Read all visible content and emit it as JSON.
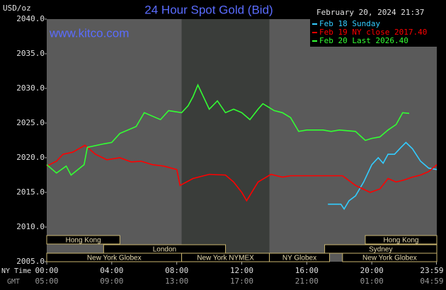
{
  "chart_data": {
    "type": "line",
    "title": "24 Hour Spot Gold (Bid)",
    "y_label": "USD/oz",
    "watermark": "www.kitco.com",
    "timestamp": "February 20, 2024 21:37",
    "x_row_label": "NY Time",
    "x2_row_label": "GMT",
    "xlim": [
      0,
      24
    ],
    "xticks": [
      {
        "value": 0,
        "label": "00:00"
      },
      {
        "value": 4,
        "label": "04:00"
      },
      {
        "value": 8,
        "label": "08:00"
      },
      {
        "value": 12,
        "label": "12:00"
      },
      {
        "value": 16,
        "label": "16:00"
      },
      {
        "value": 20,
        "label": "20:00"
      },
      {
        "value": 23.98,
        "label": "23:59"
      }
    ],
    "x2tick_labels": [
      "05:00",
      "09:00",
      "13:00",
      "17:00",
      "21:00",
      "01:00",
      "04:59"
    ],
    "ylim": [
      2005,
      2040
    ],
    "yticks": [
      {
        "value": 2005,
        "label": "2005.0"
      },
      {
        "value": 2010,
        "label": "2010.0"
      },
      {
        "value": 2015,
        "label": "2015.0"
      },
      {
        "value": 2020,
        "label": "2020.0"
      },
      {
        "value": 2025,
        "label": "2025.0"
      },
      {
        "value": 2030,
        "label": "2030.0"
      },
      {
        "value": 2035,
        "label": "2035.0"
      },
      {
        "value": 2040,
        "label": "2040.0"
      }
    ],
    "shaded_range": [
      8.3,
      13.7
    ],
    "series": [
      {
        "name": "Feb 18 Sunday",
        "color": "#33ccff",
        "x": [
          17.3,
          18.1,
          18.3,
          18.6,
          19,
          19.5,
          20,
          20.4,
          20.7,
          21,
          21.4,
          21.8,
          22.1,
          22.5,
          23,
          23.5,
          24
        ],
        "values": [
          2013.3,
          2013.3,
          2012.6,
          2013.8,
          2014.5,
          2016.5,
          2019,
          2020,
          2019.2,
          2020.5,
          2020.5,
          2021.5,
          2022.2,
          2021.3,
          2019.5,
          2018.5,
          2018.3
        ]
      },
      {
        "name": "Feb 19 NY close 2017.40",
        "color": "#ff0000",
        "x": [
          0,
          0.6,
          1,
          1.6,
          2.35,
          3,
          3.7,
          4.5,
          5.2,
          5.8,
          6.5,
          7.2,
          8,
          8.2,
          9,
          10,
          11,
          11.5,
          12,
          12.3,
          13,
          13.8,
          14.5,
          15,
          16,
          17,
          18.2,
          19,
          19.9,
          20.5,
          21,
          21.5,
          22,
          22.5,
          23,
          23.5,
          24
        ],
        "values": [
          2018.8,
          2019.5,
          2020.5,
          2020.8,
          2021.8,
          2020.5,
          2019.7,
          2020,
          2019.4,
          2019.5,
          2019,
          2018.8,
          2018.3,
          2016,
          2017,
          2017.6,
          2017.5,
          2016.5,
          2015,
          2013.8,
          2016.5,
          2017.6,
          2017.2,
          2017.4,
          2017.4,
          2017.4,
          2017.4,
          2016,
          2015,
          2015.5,
          2017,
          2016.5,
          2016.8,
          2017.2,
          2017.5,
          2018,
          2019
        ]
      },
      {
        "name": "Feb 20 Last 2026.40",
        "color": "#33ff33",
        "x": [
          0,
          0.6,
          1.2,
          1.5,
          2.3,
          2.5,
          3.5,
          4,
          4.5,
          5.5,
          6,
          6.5,
          7,
          7.5,
          8.3,
          8.7,
          9,
          9.3,
          9.6,
          10,
          10.5,
          11,
          11.5,
          12,
          12.5,
          13,
          13.3,
          14,
          14.5,
          15,
          15.5,
          16,
          17,
          17.5,
          18,
          19,
          19.6,
          20,
          20.5,
          21,
          21.5,
          21.9,
          22.3
        ],
        "values": [
          2019,
          2017.8,
          2018.8,
          2017.5,
          2019,
          2021.5,
          2022,
          2022.2,
          2023.5,
          2024.5,
          2026.5,
          2026,
          2025.5,
          2026.8,
          2026.5,
          2027.5,
          2028.8,
          2030.5,
          2029,
          2027,
          2028.2,
          2026.5,
          2027,
          2026.5,
          2025.5,
          2027,
          2027.8,
          2026.8,
          2026.5,
          2025.8,
          2023.8,
          2024,
          2024,
          2023.8,
          2024,
          2023.8,
          2022.5,
          2022.8,
          2023,
          2024,
          2024.8,
          2026.5,
          2026.4
        ]
      }
    ],
    "session_rows": [
      [
        {
          "name": "Hong Kong",
          "start": 0,
          "end": 4.5
        },
        {
          "name": "Hong Kong",
          "start": 19.6,
          "end": 24
        }
      ],
      [
        {
          "name": "London",
          "start": 3.5,
          "end": 11
        },
        {
          "name": "Sydney",
          "start": 17.1,
          "end": 24
        }
      ],
      [
        {
          "name": "New York Globex",
          "start": 0,
          "end": 8.3
        },
        {
          "name": "New York NYMEX",
          "start": 8.3,
          "end": 13.7
        },
        {
          "name": "NY Globex",
          "start": 13.7,
          "end": 17.4
        },
        {
          "name": "New York Globex",
          "start": 18.2,
          "end": 24
        }
      ]
    ]
  }
}
